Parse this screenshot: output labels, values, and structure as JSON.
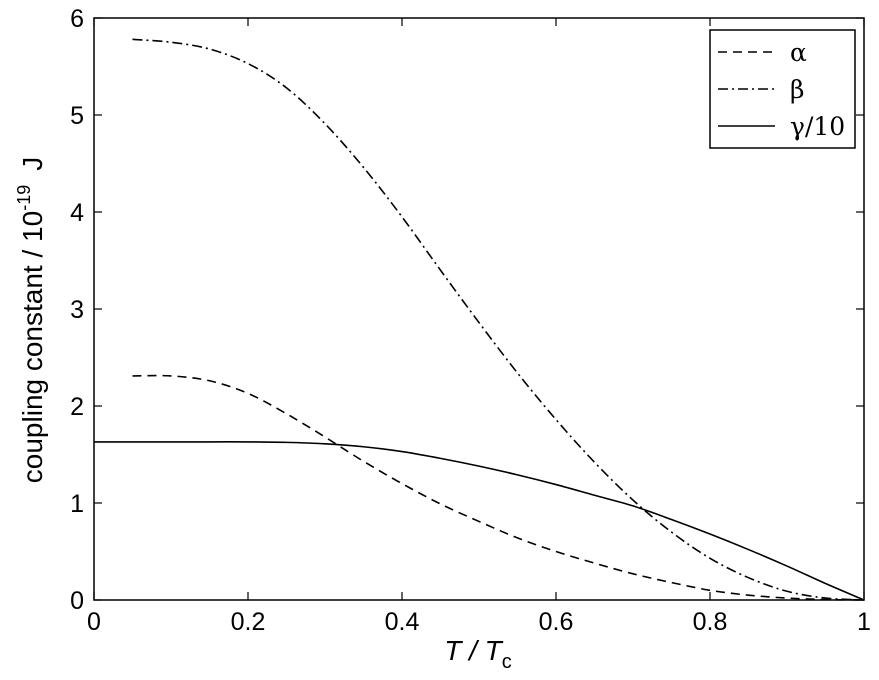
{
  "chart_data": {
    "type": "line",
    "title": "",
    "xlabel": {
      "main": "T / T",
      "subscript": "c"
    },
    "ylabel": {
      "prefix": "coupling constant / 10",
      "exponent": "-19",
      "unit": "J"
    },
    "xlim": [
      0,
      1
    ],
    "ylim": [
      0,
      6
    ],
    "xticks": [
      0,
      0.2,
      0.4,
      0.6,
      0.8,
      1
    ],
    "yticks": [
      0,
      1,
      2,
      3,
      4,
      5,
      6
    ],
    "xtick_labels": [
      "0",
      "0.2",
      "0.4",
      "0.6",
      "0.8",
      "1"
    ],
    "ytick_labels": [
      "0",
      "1",
      "2",
      "3",
      "4",
      "5",
      "6"
    ],
    "grid": false,
    "legend_position": "top-right",
    "series": [
      {
        "name": "α",
        "style": "dashed",
        "color": "#000000",
        "x": [
          0.05,
          0.1,
          0.15,
          0.2,
          0.25,
          0.3,
          0.35,
          0.4,
          0.45,
          0.5,
          0.55,
          0.6,
          0.65,
          0.7,
          0.75,
          0.8,
          0.85,
          0.9,
          0.95,
          1.0
        ],
        "y": [
          2.31,
          2.31,
          2.26,
          2.13,
          1.92,
          1.68,
          1.43,
          1.2,
          0.99,
          0.81,
          0.64,
          0.5,
          0.38,
          0.27,
          0.18,
          0.1,
          0.05,
          0.02,
          0.005,
          0.0
        ]
      },
      {
        "name": "β",
        "style": "dashdot",
        "color": "#000000",
        "x": [
          0.05,
          0.1,
          0.15,
          0.2,
          0.25,
          0.3,
          0.35,
          0.4,
          0.45,
          0.5,
          0.55,
          0.6,
          0.65,
          0.7,
          0.75,
          0.8,
          0.85,
          0.9,
          0.95,
          1.0
        ],
        "y": [
          5.78,
          5.75,
          5.68,
          5.53,
          5.28,
          4.91,
          4.46,
          3.95,
          3.4,
          2.86,
          2.34,
          1.86,
          1.42,
          1.03,
          0.7,
          0.43,
          0.23,
          0.09,
          0.02,
          0.0
        ]
      },
      {
        "name": "γ/10",
        "style": "solid",
        "color": "#000000",
        "x": [
          0.0,
          0.05,
          0.1,
          0.15,
          0.2,
          0.25,
          0.3,
          0.35,
          0.4,
          0.45,
          0.5,
          0.55,
          0.6,
          0.65,
          0.7,
          0.75,
          0.8,
          0.85,
          0.9,
          0.95,
          1.0
        ],
        "y": [
          1.63,
          1.63,
          1.63,
          1.63,
          1.63,
          1.625,
          1.61,
          1.58,
          1.53,
          1.46,
          1.38,
          1.29,
          1.19,
          1.08,
          0.97,
          0.83,
          0.68,
          0.52,
          0.35,
          0.17,
          0.0
        ]
      }
    ]
  }
}
